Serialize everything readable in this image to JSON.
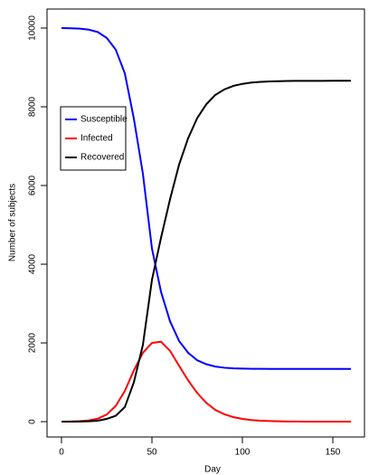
{
  "chart_data": {
    "type": "line",
    "x_label": "Day",
    "y_label": "Number of subjects",
    "x": [
      0,
      5,
      10,
      15,
      20,
      25,
      30,
      35,
      40,
      45,
      50,
      55,
      60,
      65,
      70,
      75,
      80,
      85,
      90,
      95,
      100,
      105,
      110,
      115,
      120,
      125,
      130,
      135,
      140,
      145,
      150,
      155,
      160
    ],
    "series": [
      {
        "name": "Susceptible",
        "color": "#0000ff",
        "values": [
          9999,
          9995,
          9985,
          9960,
          9900,
          9750,
          9450,
          8850,
          7700,
          6300,
          4400,
          3300,
          2550,
          2050,
          1750,
          1560,
          1460,
          1400,
          1370,
          1355,
          1348,
          1344,
          1342,
          1341,
          1340,
          1340,
          1340,
          1340,
          1340,
          1340,
          1340,
          1340,
          1340
        ]
      },
      {
        "name": "Infected",
        "color": "#ff0000",
        "values": [
          1,
          4,
          12,
          30,
          75,
          180,
          400,
          780,
          1300,
          1750,
          2000,
          2030,
          1800,
          1420,
          1050,
          730,
          480,
          300,
          190,
          115,
          70,
          42,
          25,
          15,
          9,
          5,
          3,
          2,
          1,
          1,
          0,
          0,
          0
        ]
      },
      {
        "name": "Recovered",
        "color": "#000000",
        "values": [
          0,
          1,
          3,
          10,
          25,
          70,
          150,
          370,
          1000,
          1950,
          3600,
          4670,
          5650,
          6530,
          7200,
          7710,
          8060,
          8300,
          8440,
          8530,
          8582,
          8614,
          8633,
          8644,
          8651,
          8655,
          8657,
          8658,
          8659,
          8659,
          8660,
          8660,
          8660
        ]
      }
    ],
    "xlim": [
      -8,
      167.5
    ],
    "xticks": [
      0,
      50,
      100,
      150
    ],
    "ylim": [
      -390,
      10483
    ],
    "yticks": [
      0,
      2000,
      4000,
      6000,
      8000,
      10000
    ],
    "legend": "upper left"
  }
}
